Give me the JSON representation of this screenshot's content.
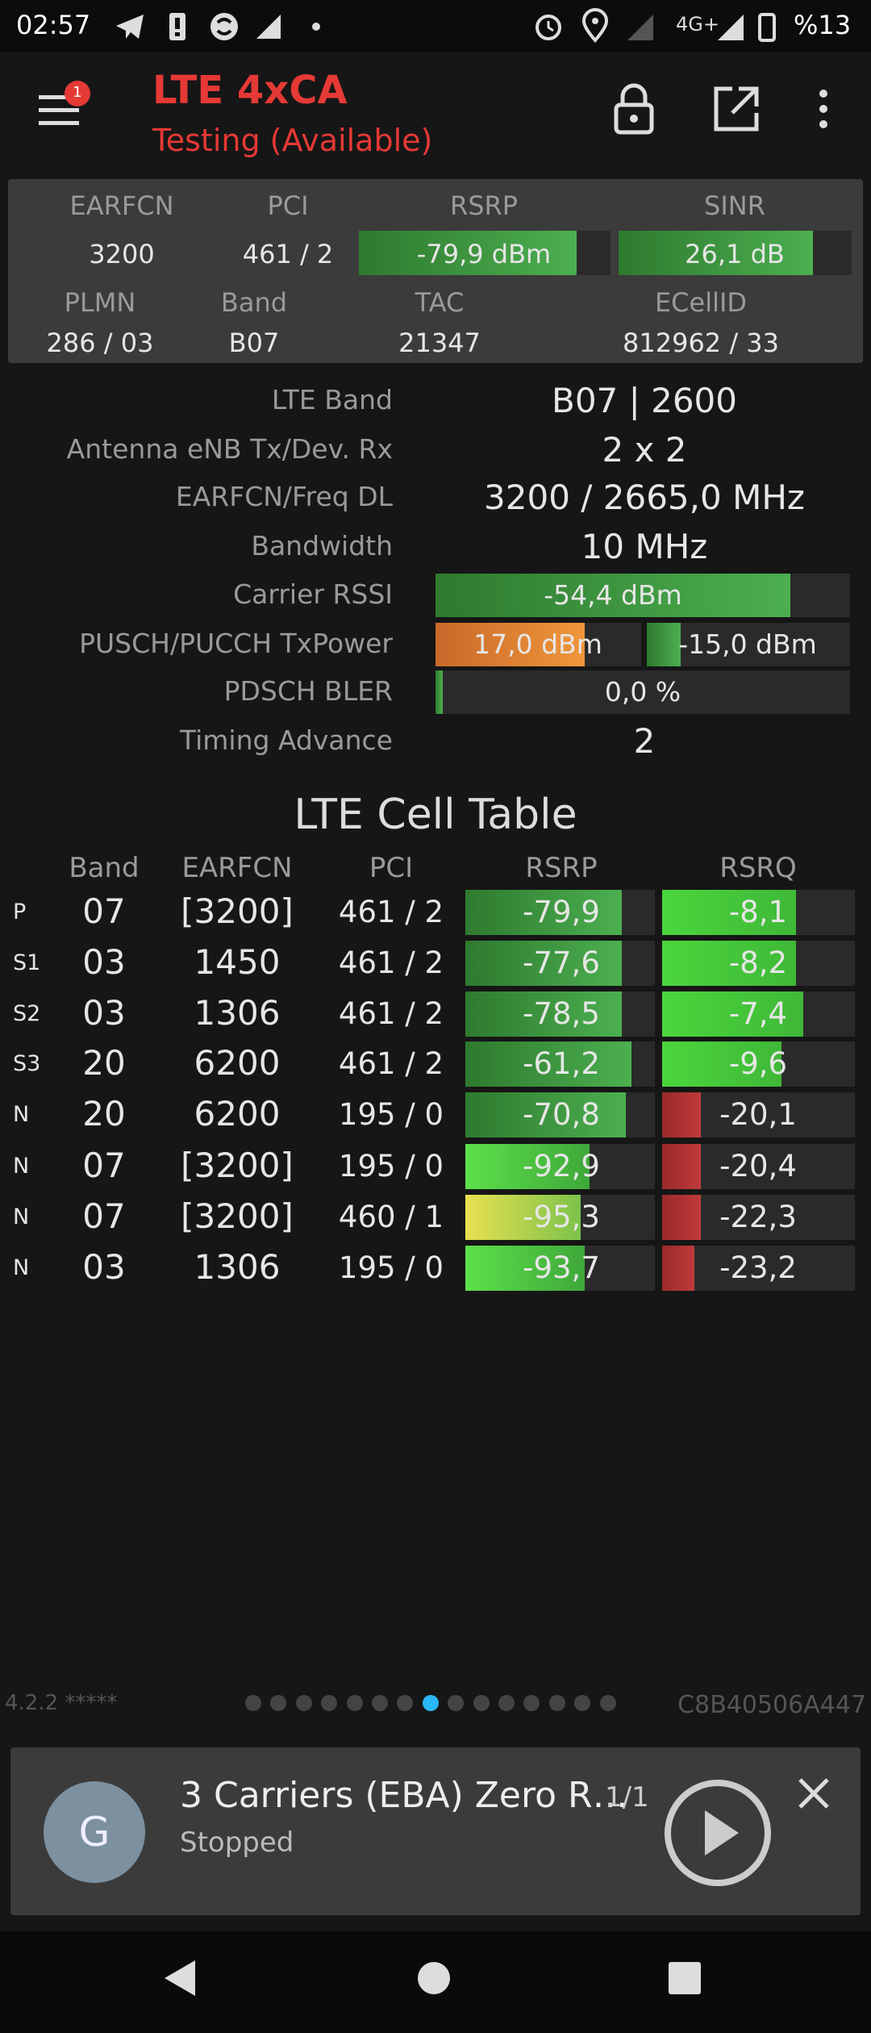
{
  "status_bar": {
    "time": "02:57",
    "network": "4G+",
    "battery": "%13"
  },
  "app_bar": {
    "notification_count": "1",
    "title": "LTE 4xCA",
    "subtitle": "Testing (Available)"
  },
  "summary": {
    "headers_1": [
      "EARFCN",
      "PCI",
      "RSRP",
      "SINR"
    ],
    "values_1": [
      "3200",
      "461 / 2",
      "-79,9 dBm",
      "26,1 dB"
    ],
    "headers_2": [
      "PLMN",
      "Band",
      "TAC",
      "ECellID"
    ],
    "values_2": [
      "286 / 03",
      "B07",
      "21347",
      "812962 / 33"
    ]
  },
  "details": [
    {
      "label": "LTE Band",
      "value": "B07 | 2600"
    },
    {
      "label": "Antenna eNB Tx/Dev. Rx",
      "value": "2 x 2"
    },
    {
      "label": "EARFCN/Freq DL",
      "value": "3200 / 2665,0 MHz"
    },
    {
      "label": "Bandwidth",
      "value": "10 MHz"
    },
    {
      "label": "Carrier RSSI",
      "value": "-54,4 dBm"
    },
    {
      "label": "PUSCH/PUCCH TxPower",
      "values": [
        "17,0 dBm",
        "-15,0 dBm"
      ]
    },
    {
      "label": "PDSCH BLER",
      "value": "0,0 %"
    },
    {
      "label": "Timing Advance",
      "value": "2"
    }
  ],
  "cell_table": {
    "title": "LTE Cell Table",
    "headers": [
      "Band",
      "EARFCN",
      "PCI",
      "RSRP",
      "RSRQ"
    ],
    "rows": [
      [
        "P",
        "07",
        "[3200]",
        "461 / 2",
        "-79,9",
        "-8,1"
      ],
      [
        "S1",
        "03",
        "1450",
        "461 / 2",
        "-77,6",
        "-8,2"
      ],
      [
        "S2",
        "03",
        "1306",
        "461 / 2",
        "-78,5",
        "-7,4"
      ],
      [
        "S3",
        "20",
        "6200",
        "461 / 2",
        "-61,2",
        "-9,6"
      ],
      [
        "N",
        "20",
        "6200",
        "195 / 0",
        "-70,8",
        "-20,1"
      ],
      [
        "N",
        "07",
        "[3200]",
        "195 / 0",
        "-92,9",
        "-20,4"
      ],
      [
        "N",
        "07",
        "[3200]",
        "460 / 1",
        "-95,3",
        "-22,3"
      ],
      [
        "N",
        "03",
        "1306",
        "195 / 0",
        "-93,7",
        "-23,2"
      ]
    ]
  },
  "footer": {
    "version": "4.2.2 *****",
    "device_id": "C8B40506A447"
  },
  "player": {
    "avatar": "G",
    "title": "3 Carriers (EBA) Zero R…",
    "position": "1/1",
    "status": "Stopped"
  }
}
